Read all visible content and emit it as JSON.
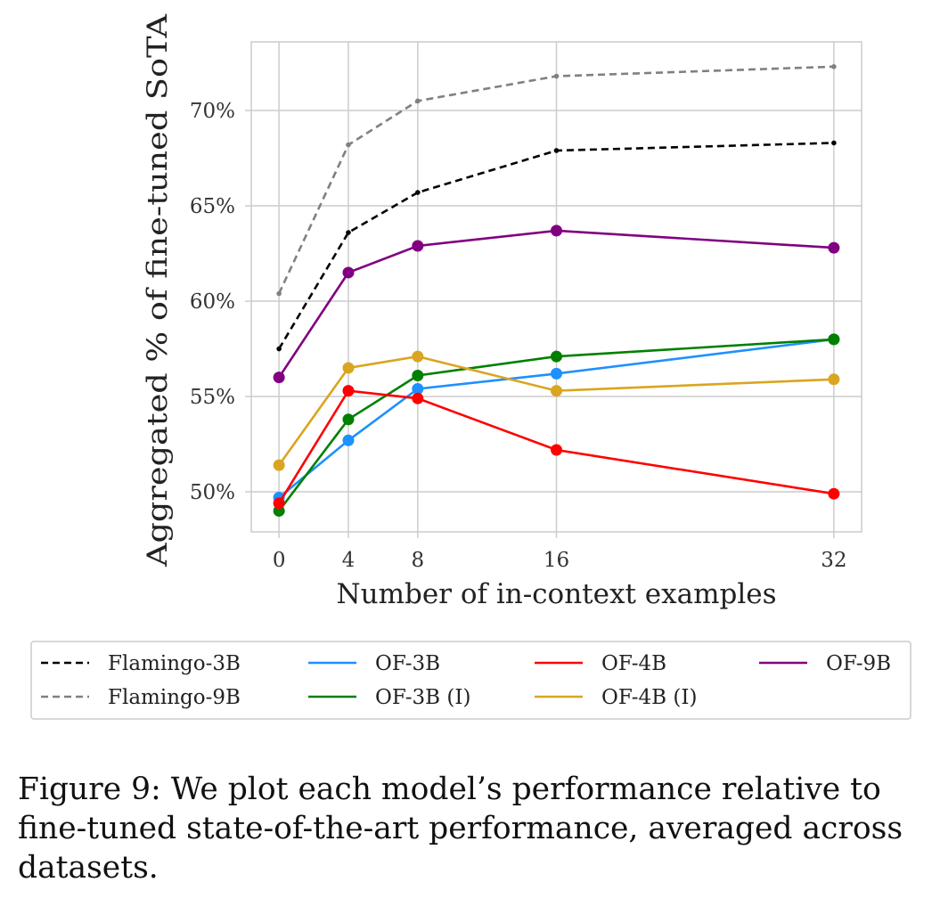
{
  "chart_data": {
    "type": "line",
    "title": "",
    "xlabel": "Number of in-context examples",
    "ylabel": "Aggregated % of fine-tuned SoTA",
    "x": [
      0,
      4,
      8,
      16,
      32
    ],
    "x_ticks": [
      "0",
      "4",
      "8",
      "16",
      "32"
    ],
    "xlim": [
      -1.6,
      33.6
    ],
    "ylim": [
      47.9,
      73.6
    ],
    "y_ticks": [
      50,
      55,
      60,
      65,
      70
    ],
    "y_tick_labels": [
      "50%",
      "55%",
      "60%",
      "65%",
      "70%"
    ],
    "grid": true,
    "legend_position": "below",
    "series": [
      {
        "name": "Flamingo-3B",
        "values": [
          57.5,
          63.6,
          65.7,
          67.9,
          68.3
        ],
        "color": "#000000",
        "dashed": true,
        "marker": "small"
      },
      {
        "name": "Flamingo-9B",
        "values": [
          60.4,
          68.2,
          70.5,
          71.8,
          72.3
        ],
        "color": "#808080",
        "dashed": true,
        "marker": "small"
      },
      {
        "name": "OF-3B",
        "values": [
          49.7,
          52.7,
          55.4,
          56.2,
          58.0
        ],
        "color": "#1e90ff",
        "dashed": false,
        "marker": "large"
      },
      {
        "name": "OF-3B (I)",
        "values": [
          49.0,
          53.8,
          56.1,
          57.1,
          58.0
        ],
        "color": "#008000",
        "dashed": false,
        "marker": "large"
      },
      {
        "name": "OF-4B",
        "values": [
          49.4,
          55.3,
          54.9,
          52.2,
          49.9
        ],
        "color": "#ff0000",
        "dashed": false,
        "marker": "large"
      },
      {
        "name": "OF-4B (I)",
        "values": [
          51.4,
          56.5,
          57.1,
          55.3,
          55.9
        ],
        "color": "#daa520",
        "dashed": false,
        "marker": "large"
      },
      {
        "name": "OF-9B",
        "values": [
          56.0,
          61.5,
          62.9,
          63.7,
          62.8
        ],
        "color": "#800080",
        "dashed": false,
        "marker": "large"
      }
    ],
    "legend_order": [
      "Flamingo-3B",
      "OF-3B",
      "OF-4B",
      "OF-9B",
      "Flamingo-9B",
      "OF-3B (I)",
      "OF-4B (I)"
    ]
  },
  "caption": "Figure 9: We plot each model’s performance relative to fine-tuned state-of-the-art performance, averaged across datasets."
}
